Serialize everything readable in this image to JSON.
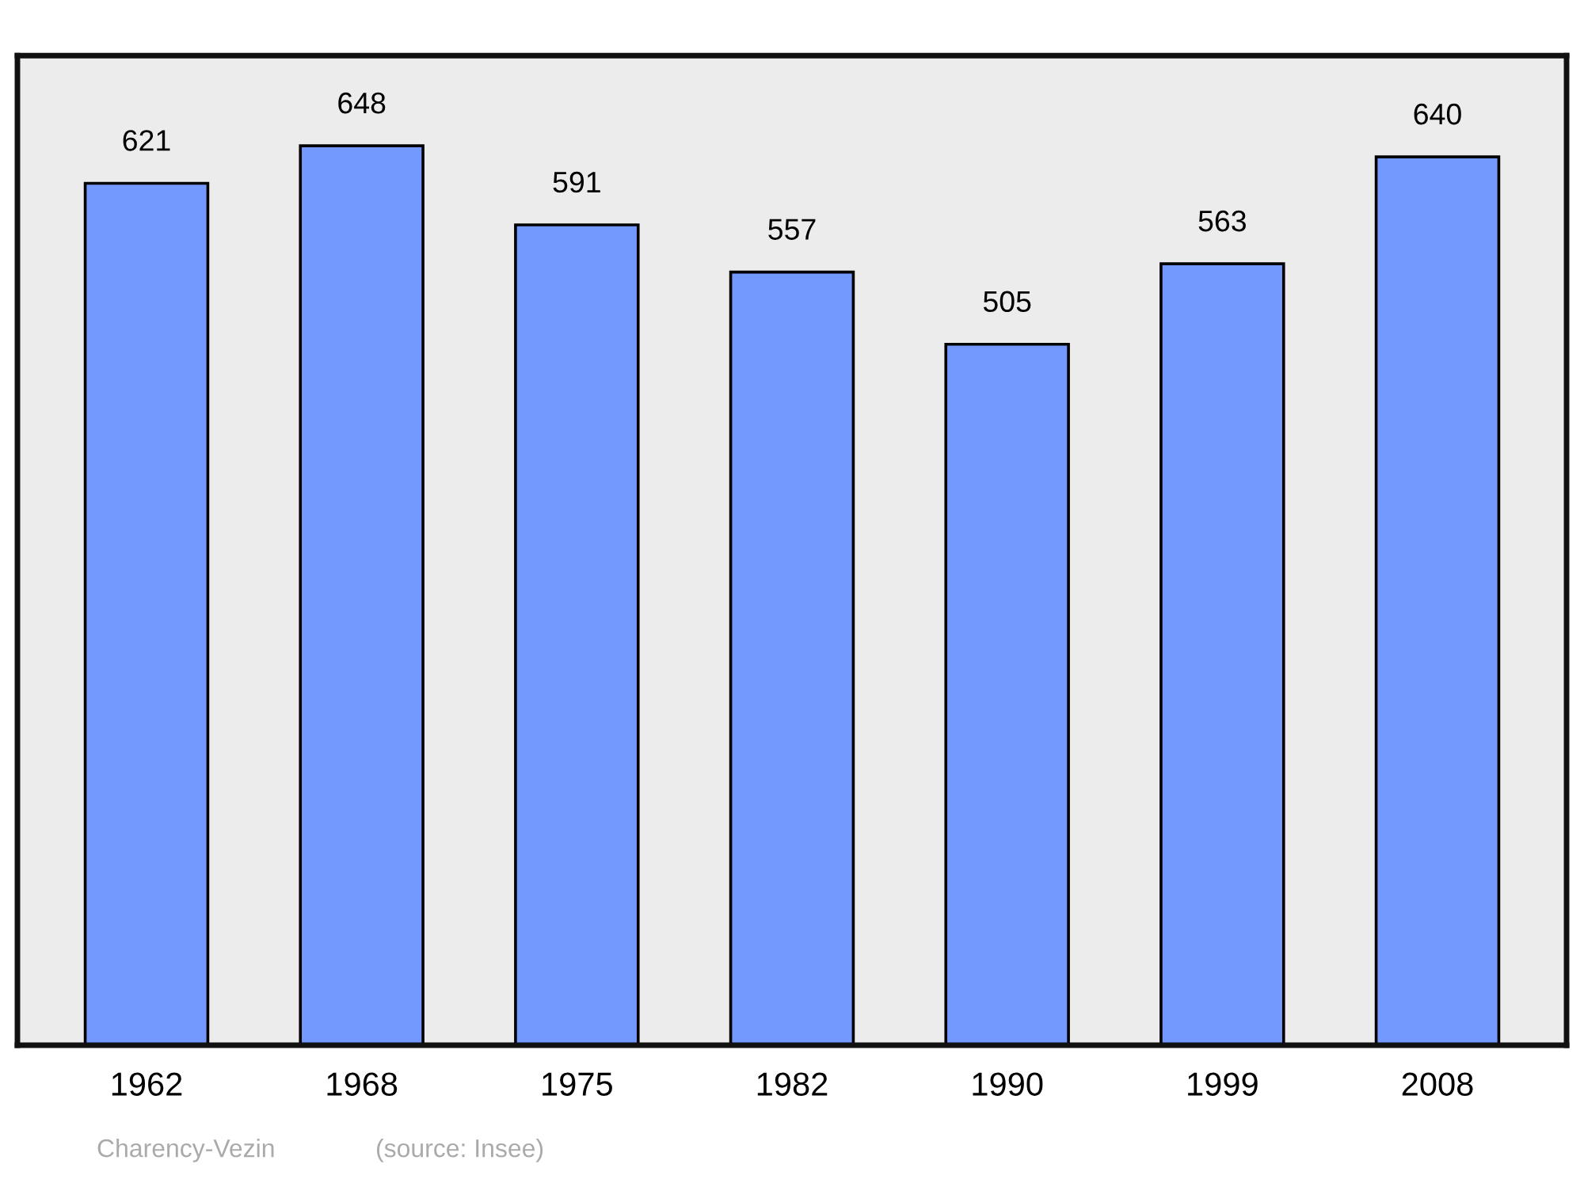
{
  "chart_data": {
    "type": "bar",
    "categories": [
      "1962",
      "1968",
      "1975",
      "1982",
      "1990",
      "1999",
      "2008"
    ],
    "values": [
      621,
      648,
      591,
      557,
      505,
      563,
      640
    ],
    "color": "#7399ff",
    "ylim": [
      0,
      713
    ],
    "data_labels": true,
    "tick_labels": "x",
    "grid": false,
    "legend": false,
    "annotations": [
      "Charency-Vezin",
      "(source: Insee)"
    ]
  }
}
